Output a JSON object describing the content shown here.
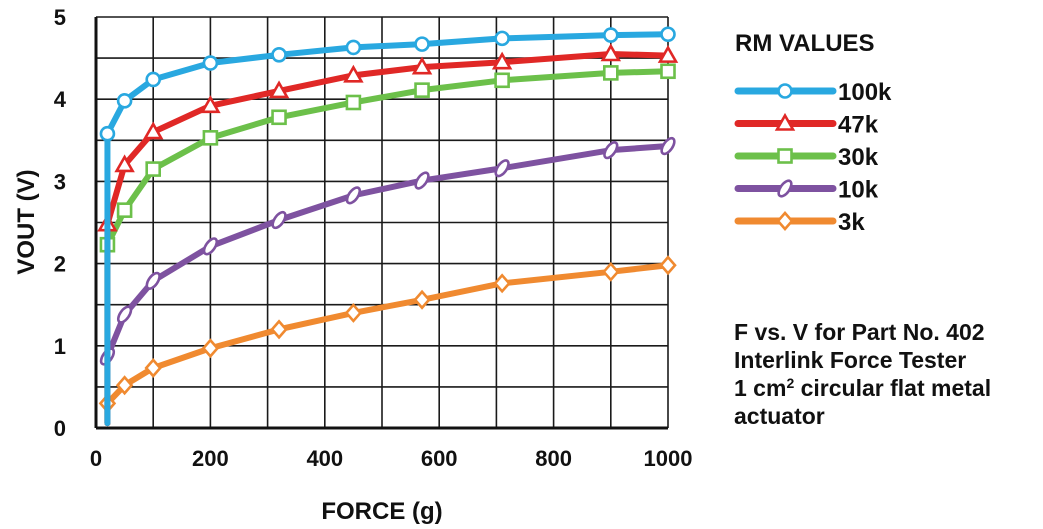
{
  "chart_data": {
    "type": "line",
    "xlabel": "FORCE (g)",
    "ylabel": "VOUT (V)",
    "xlim": [
      0,
      1000
    ],
    "ylim": [
      0,
      5
    ],
    "x_ticks": [
      "0",
      "200",
      "400",
      "600",
      "800",
      "1000"
    ],
    "y_ticks": [
      "0",
      "1",
      "2",
      "3",
      "4",
      "5"
    ],
    "grid": true,
    "legend_title": "RM VALUES",
    "legend_position": "right",
    "series": [
      {
        "name": "100k",
        "color": "#29a8e0",
        "marker": "circle",
        "x": [
          20,
          50,
          100,
          200,
          320,
          450,
          570,
          710,
          900,
          1000
        ],
        "y": [
          3.58,
          3.98,
          4.24,
          4.44,
          4.54,
          4.63,
          4.67,
          4.74,
          4.78,
          4.79
        ]
      },
      {
        "name": "47k",
        "color": "#e02826",
        "marker": "triangle",
        "x": [
          20,
          50,
          100,
          200,
          320,
          450,
          570,
          710,
          900,
          1000
        ],
        "y": [
          2.48,
          3.2,
          3.6,
          3.92,
          4.1,
          4.29,
          4.39,
          4.45,
          4.55,
          4.53
        ]
      },
      {
        "name": "30k",
        "color": "#6cc04a",
        "marker": "square",
        "x": [
          20,
          50,
          100,
          200,
          320,
          450,
          570,
          710,
          900,
          1000
        ],
        "y": [
          2.23,
          2.65,
          3.15,
          3.53,
          3.78,
          3.96,
          4.11,
          4.23,
          4.32,
          4.34
        ]
      },
      {
        "name": "10k",
        "color": "#7e52a0",
        "marker": "ellipse",
        "x": [
          20,
          50,
          100,
          200,
          320,
          450,
          570,
          710,
          900,
          1000
        ],
        "y": [
          0.87,
          1.38,
          1.79,
          2.21,
          2.53,
          2.83,
          3.01,
          3.16,
          3.38,
          3.43
        ]
      },
      {
        "name": "3k",
        "color": "#f08a30",
        "marker": "diamond",
        "x": [
          20,
          50,
          100,
          200,
          320,
          450,
          570,
          710,
          900,
          1000
        ],
        "y": [
          0.3,
          0.52,
          0.73,
          0.97,
          1.2,
          1.4,
          1.56,
          1.76,
          1.9,
          1.98
        ]
      }
    ]
  },
  "caption": {
    "line1": "F vs. V for Part No. 402",
    "line2": "Interlink Force Tester",
    "line3_pre": "1 cm",
    "line3_sup": "2",
    "line3_post": " circular flat metal",
    "line4": "actuator"
  }
}
